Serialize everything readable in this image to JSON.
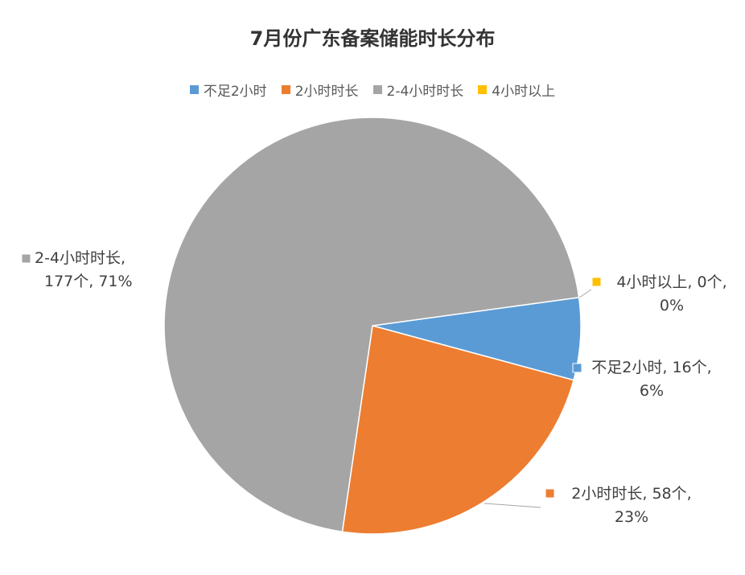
{
  "chart_data": {
    "type": "pie",
    "title": "7月份广东备案储能时长分布",
    "unit": "个",
    "legend_position": "top",
    "slices": [
      {
        "name": "不足2小时",
        "value": 16,
        "percent": "6%",
        "color": "#5B9BD5"
      },
      {
        "name": "2小时时长",
        "value": 58,
        "percent": "23%",
        "color": "#ED7D31"
      },
      {
        "name": "2-4小时时长",
        "value": 177,
        "percent": "71%",
        "color": "#A5A5A5"
      },
      {
        "name": "4小时以上",
        "value": 0,
        "percent": "0%",
        "color": "#FFC000"
      }
    ]
  }
}
